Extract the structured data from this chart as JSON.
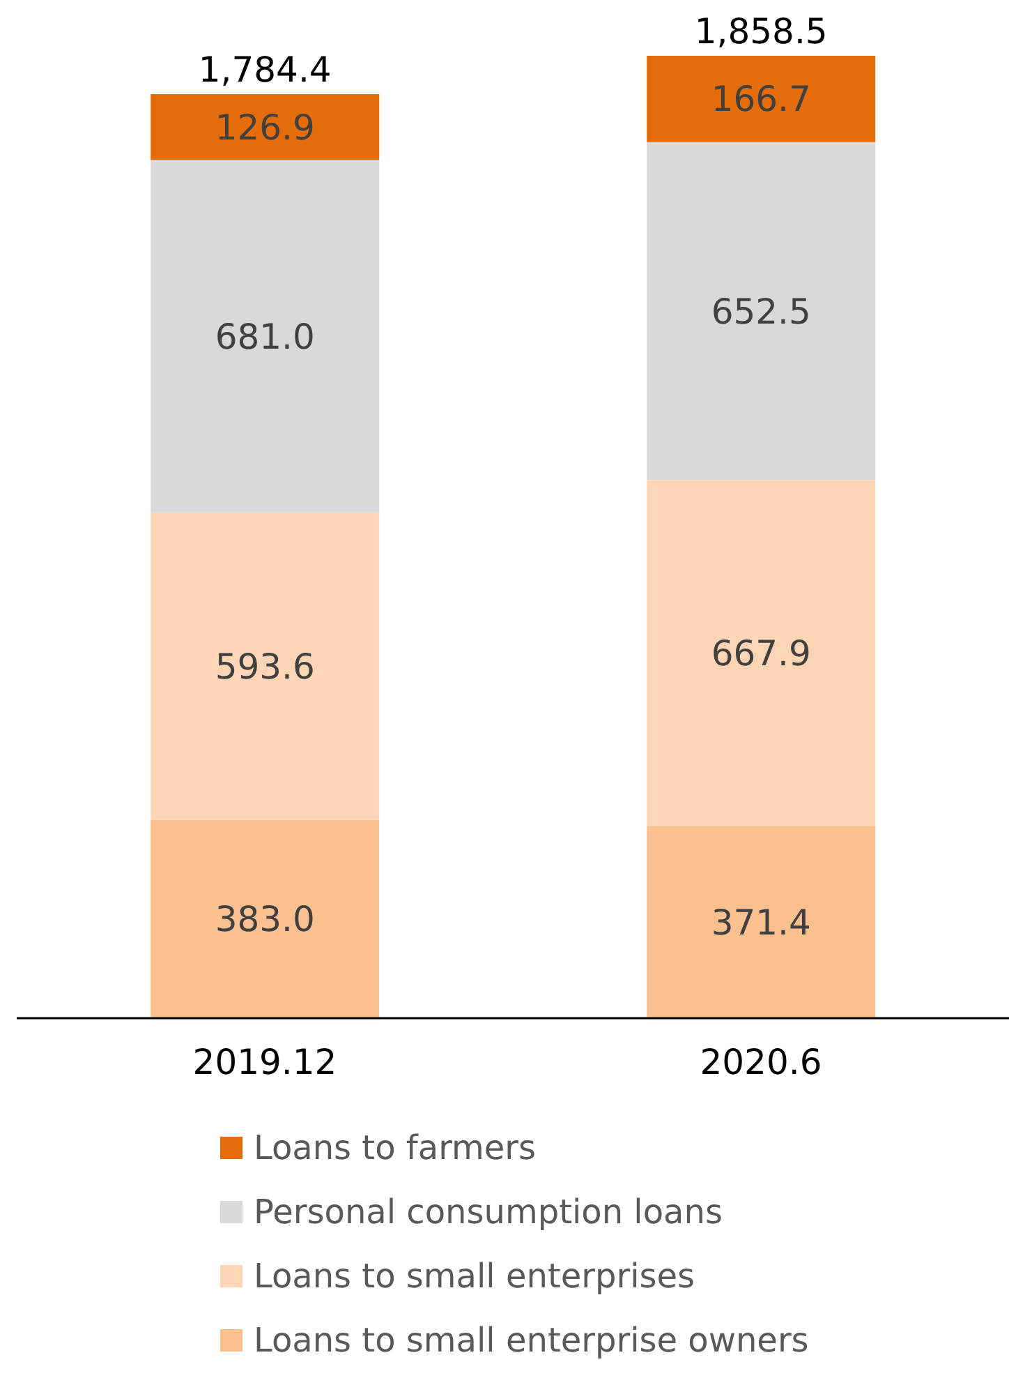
{
  "chart_data": {
    "type": "bar",
    "stacked": true,
    "categories": [
      "2019.12",
      "2020.6"
    ],
    "series": [
      {
        "name": "Loans to small enterprise owners",
        "color": "#fac090",
        "values": [
          383.0,
          371.4
        ],
        "value_labels": [
          "383.0",
          "371.4"
        ]
      },
      {
        "name": "Loans to small enterprises",
        "color": "#fcd5b5",
        "values": [
          593.6,
          667.9
        ],
        "value_labels": [
          "593.6",
          "667.9"
        ]
      },
      {
        "name": "Personal consumption loans",
        "color": "#d9d9d9",
        "values": [
          681.0,
          652.5
        ],
        "value_labels": [
          "681.0",
          "652.5"
        ]
      },
      {
        "name": "Loans to farmers",
        "color": "#e46c0a",
        "values": [
          126.9,
          166.7
        ],
        "value_labels": [
          "126.9",
          "166.7"
        ]
      }
    ],
    "totals": [
      "1,784.4",
      "1,858.5"
    ],
    "legend": "bottom",
    "grid": false
  }
}
